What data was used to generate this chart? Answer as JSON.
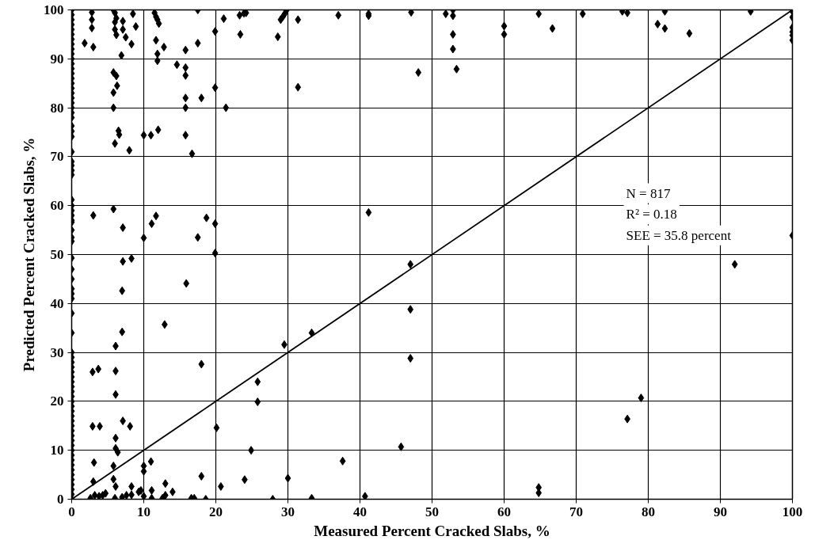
{
  "chart_data": {
    "type": "scatter",
    "xlabel": "Measured Percent Cracked Slabs, %",
    "ylabel": "Predicted Percent Cracked Slabs, %",
    "xlim": [
      0,
      100
    ],
    "ylim": [
      0,
      100
    ],
    "xticks": [
      0,
      10,
      20,
      30,
      40,
      50,
      60,
      70,
      80,
      90,
      100
    ],
    "yticks": [
      0,
      10,
      20,
      30,
      40,
      50,
      60,
      70,
      80,
      90,
      100
    ],
    "grid": true,
    "marker": "diamond",
    "annotations": [
      "N = 817",
      "R² = 0.18",
      "SEE = 35.8 percent"
    ],
    "series": [
      {
        "color": "#000000",
        "x": [
          0,
          0,
          0,
          0,
          0,
          0,
          0,
          0,
          0,
          0,
          0,
          0,
          0,
          0,
          0,
          0,
          0,
          0,
          0,
          0,
          0,
          0,
          0,
          0,
          0,
          0,
          0,
          0,
          0,
          0,
          0,
          0,
          0,
          0,
          0,
          0,
          0,
          0,
          0,
          0,
          0,
          0,
          0,
          0,
          0,
          0,
          0,
          0,
          0,
          0,
          0,
          0,
          0,
          0,
          0,
          0,
          0,
          0,
          0,
          0,
          0,
          0,
          0,
          0,
          0,
          0,
          0,
          0,
          0,
          0,
          0,
          0,
          0,
          0,
          0,
          0,
          0,
          0,
          0,
          2.8,
          2.8,
          2.8,
          1.8,
          3.0,
          5.8,
          6.0,
          6.2,
          6.0,
          6.0,
          6.2,
          7.1,
          7.1,
          7.5,
          8.3,
          8.5,
          8.9,
          6.9,
          5.8,
          6.2,
          6.3,
          5.8,
          5.8,
          6.5,
          6.6,
          6.0,
          8.0,
          10,
          11,
          12,
          11.5,
          11.7,
          11.9,
          12.1,
          11.7,
          11.9,
          11.9,
          12.8,
          14.6,
          15.8,
          15.8,
          15.8,
          15.8,
          15.8,
          18,
          15.8,
          16.7,
          17.5,
          17.5,
          19.9,
          19.9,
          21.4,
          21.1,
          23.3,
          23.9,
          24.2,
          23.4,
          3,
          5.8,
          7.1,
          11.1,
          11.7,
          10,
          18.7,
          17.5,
          19.9,
          19.9,
          7.1,
          8.3,
          7,
          15.9,
          12.9,
          7,
          6.1,
          18,
          2.9,
          3.7,
          6.1,
          6.1,
          2.9,
          3.9,
          7.1,
          8.1,
          6.1,
          6.1,
          6.4,
          3.1,
          11,
          10,
          10,
          5.8,
          3,
          5.8,
          6.1,
          8.3,
          18,
          20.7,
          24,
          24.9,
          25.8,
          25.8,
          20.1,
          2.6,
          3.2,
          3.8,
          4.3,
          4.7,
          6,
          7,
          7.6,
          8.3,
          9.3,
          9.6,
          10,
          11.1,
          11.1,
          12.6,
          13,
          13,
          14,
          16.6,
          17,
          18.6,
          28.6,
          29,
          29.3,
          29.6,
          29.8,
          31.4,
          31.4,
          37,
          41.2,
          41.2,
          47.1,
          48.1,
          51.9,
          52.9,
          52.9,
          52.9,
          52.9,
          53.4,
          60,
          60,
          41.2,
          47,
          47,
          47,
          33.3,
          29.5,
          45.7,
          37.6,
          30,
          27.9,
          33.3,
          40.7,
          64.8,
          66.7,
          70.9,
          76.4,
          77.1,
          82.3,
          81.3,
          82.3,
          85.7,
          94.2,
          100,
          100,
          100,
          100,
          100,
          100,
          100,
          92,
          79,
          77.1,
          64.8,
          64.8
        ],
        "values": [
          100,
          99,
          98,
          97,
          96,
          95,
          94,
          93,
          92,
          91,
          90,
          89,
          88,
          87,
          86,
          85,
          84,
          83,
          82,
          81,
          80,
          79,
          78,
          76.3,
          75.2,
          74.1,
          71,
          69,
          68.2,
          67.2,
          66.3,
          61.2,
          60,
          59,
          58,
          57,
          56.6,
          55,
          53.5,
          52.7,
          49.3,
          47,
          45,
          43,
          42,
          41,
          38,
          34,
          30,
          29,
          28,
          27,
          26,
          25,
          24,
          23,
          22,
          21,
          20,
          19,
          18,
          17,
          16,
          15,
          14,
          13,
          12,
          11,
          10,
          9,
          8,
          7,
          6,
          5,
          4,
          3,
          2,
          1,
          0,
          99.5,
          98,
          96.3,
          93.2,
          92.4,
          100,
          99.4,
          98.3,
          97.5,
          96,
          94.9,
          97.7,
          96,
          94.4,
          93,
          99.2,
          96.6,
          90.7,
          87.2,
          86.5,
          84.5,
          83.1,
          80,
          75.3,
          74.5,
          72.7,
          71.3,
          74.4,
          74.4,
          75.5,
          99.4,
          98.6,
          98,
          97.2,
          93.8,
          91,
          89.6,
          92.4,
          88.8,
          91.8,
          88.2,
          86.6,
          82,
          80,
          82,
          74.4,
          70.6,
          100,
          93.2,
          95.6,
          84.1,
          80,
          98.2,
          98.9,
          99.3,
          99.4,
          95,
          58,
          59.3,
          55.5,
          56.3,
          57.9,
          53.4,
          57.5,
          53.5,
          56.3,
          50.3,
          48.6,
          49.2,
          42.6,
          44.1,
          35.7,
          34.2,
          31.3,
          27.6,
          26,
          26.6,
          26.2,
          21.4,
          14.9,
          14.9,
          16,
          14.9,
          12.5,
          10.4,
          9.6,
          7.5,
          7.7,
          6.8,
          5.7,
          6.8,
          3.6,
          4.1,
          2.6,
          2.6,
          4.7,
          2.6,
          4,
          10,
          24,
          19.9,
          14.6,
          0.2,
          0.8,
          0.6,
          0.8,
          1.2,
          0.2,
          0.4,
          0.8,
          0.9,
          1.5,
          1.8,
          0.6,
          1.8,
          0.2,
          0.2,
          3.2,
          0.8,
          1.5,
          0.2,
          0.2,
          0,
          94.5,
          98,
          98.6,
          99.3,
          99.9,
          98,
          84.2,
          98.9,
          98.8,
          99.2,
          99.5,
          87.2,
          99.2,
          100,
          98.8,
          95,
          92,
          87.9,
          96.7,
          95,
          58.6,
          48,
          38.8,
          28.8,
          34,
          31.6,
          10.7,
          7.8,
          4.3,
          0,
          0.2,
          0.6,
          99.2,
          96.2,
          99.2,
          99.7,
          99.4,
          99.7,
          97.1,
          96.2,
          95.2,
          99.7,
          99.7,
          98.5,
          96.4,
          95.5,
          94.8,
          93.8,
          53.9,
          48,
          20.7,
          16.4,
          2.4,
          1.3
        ]
      },
      {
        "type": "line",
        "color": "#000000",
        "marker": "none",
        "x": [
          0,
          100
        ],
        "values": [
          0,
          100
        ]
      }
    ]
  }
}
